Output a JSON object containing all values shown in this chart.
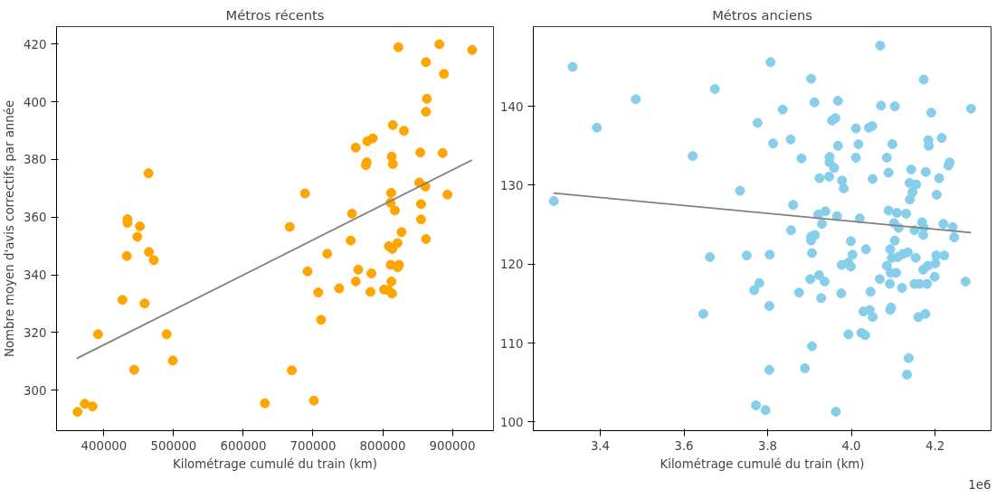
{
  "chart_data": [
    {
      "type": "scatter",
      "title": "Métros récents",
      "xlabel": "Kilométrage cumulé du train (km)",
      "ylabel": "Nombre moyen d'avis correctifs par année",
      "xlim": [
        332000,
        959000
      ],
      "ylim": [
        286,
        426
      ],
      "xticks": [
        400000,
        500000,
        600000,
        700000,
        800000,
        900000
      ],
      "yticks": [
        300,
        320,
        340,
        360,
        380,
        400,
        420
      ],
      "grid": false,
      "series": [
        {
          "marker": "circle",
          "color": "#ffa500",
          "x": [
            464000,
            433800,
            433800,
            451600,
            447900,
            432900,
            464600,
            471600,
            426600,
            458400,
            391600,
            490000,
            498800,
            443400,
            362100,
            372500,
            383700,
            630900,
            666600,
            754100,
            827100,
            862100,
            808800,
            813800,
            821300,
            720400,
            811600,
            823400,
            821600,
            692100,
            765000,
            783800,
            761300,
            812500,
            707500,
            737500,
            782500,
            802100,
            808400,
            813400,
            711600,
            669600,
            701300,
            822500,
            881300,
            928400,
            862100,
            887900,
            863400,
            862100,
            814600,
            830400,
            785900,
            777900,
            761300,
            812900,
            814600,
            777100,
            775900,
            854000,
            885900,
            688400,
            852500,
            861300,
            892900,
            812100,
            811300,
            817500,
            855000,
            755900,
            855000
          ],
          "values": [
            375.2,
            359.3,
            358.0,
            356.8,
            353.2,
            346.5,
            347.9,
            345.1,
            331.3,
            330.1,
            319.4,
            319.4,
            310.3,
            307.1,
            292.5,
            295.3,
            294.4,
            295.5,
            356.6,
            351.9,
            354.8,
            352.4,
            349.9,
            349.0,
            351.0,
            347.3,
            343.5,
            343.5,
            342.6,
            341.2,
            341.8,
            340.5,
            337.7,
            337.7,
            333.9,
            335.3,
            334.1,
            334.9,
            334.7,
            333.5,
            324.4,
            306.9,
            296.4,
            418.9,
            419.9,
            417.9,
            413.7,
            409.6,
            401.0,
            396.5,
            391.9,
            389.9,
            387.3,
            386.3,
            384.1,
            381.0,
            378.4,
            379.0,
            378.0,
            382.4,
            382.2,
            368.2,
            372.0,
            370.6,
            367.8,
            368.4,
            365.0,
            362.3,
            364.5,
            361.2,
            359.2
          ]
        },
        {
          "type": "line",
          "color": "#808080",
          "x": [
            360900,
            928400
          ],
          "values": [
            311.0,
            379.8
          ]
        }
      ]
    },
    {
      "type": "scatter",
      "title": "Métros anciens",
      "xlabel": "Kilométrage cumulé du train (km)",
      "annotations": [
        "1e6"
      ],
      "xlim": [
        3.24,
        4.334
      ],
      "ylim": [
        98.9,
        150.1
      ],
      "xticks": [
        {
          "value": 3.4,
          "label": "3.4"
        },
        {
          "value": 3.6,
          "label": "3.6"
        },
        {
          "value": 3.8,
          "label": "3.8"
        },
        {
          "value": 4.0,
          "label": "4.0"
        },
        {
          "value": 4.2,
          "label": "4.2"
        }
      ],
      "yticks": [
        100,
        110,
        120,
        130,
        140
      ],
      "grid": false,
      "series": [
        {
          "marker": "circle",
          "color": "#87ceeb",
          "x": [
            3.289,
            3.334,
            3.392,
            3.485,
            3.621,
            3.674,
            3.734,
            3.776,
            3.807,
            3.813,
            3.836,
            3.855,
            3.861,
            3.856,
            3.881,
            3.904,
            3.912,
            3.924,
            3.921,
            3.938,
            3.93,
            3.904,
            3.913,
            3.948,
            3.948,
            3.959,
            3.947,
            3.954,
            3.962,
            3.968,
            3.968,
            3.978,
            3.982,
            3.966,
            3.999,
            4.011,
            4.011,
            4.017,
            4.02,
            4.042,
            4.05,
            4.051,
            4.069,
            4.071,
            4.085,
            4.089,
            4.089,
            4.098,
            4.104,
            4.102,
            4.109,
            4.113,
            4.104,
            4.131,
            4.139,
            4.143,
            4.146,
            4.14,
            4.155,
            4.151,
            4.169,
            4.173,
            4.173,
            4.172,
            4.178,
            4.184,
            4.185,
            4.191,
            4.204,
            4.21,
            4.216,
            4.22,
            4.232,
            4.235,
            4.242,
            4.246,
            4.286,
            3.904,
            4.035,
            4.093,
            3.662,
            3.646,
            3.75,
            3.805,
            3.768,
            3.78,
            3.804,
            3.772,
            3.795,
            3.804,
            3.875,
            3.906,
            3.902,
            3.923,
            3.936,
            3.928,
            3.889,
            3.906,
            3.963,
            3.977,
            3.993,
            3.999,
            4.003,
            3.976,
            3.993,
            4.024,
            4.033,
            4.029,
            4.044,
            4.051,
            4.046,
            4.068,
            4.085,
            4.094,
            4.107,
            4.092,
            4.097,
            4.111,
            4.123,
            4.135,
            4.121,
            4.154,
            4.151,
            4.163,
            4.181,
            4.172,
            4.183,
            4.201,
            4.203,
            4.222,
            4.199,
            4.273,
            4.093,
            4.095,
            4.16,
            4.177,
            4.137,
            4.133
          ],
          "values": [
            128.0,
            145.0,
            137.3,
            140.9,
            133.7,
            142.2,
            129.3,
            137.9,
            145.6,
            135.3,
            139.6,
            135.8,
            127.5,
            124.3,
            133.4,
            143.5,
            140.5,
            130.9,
            126.3,
            126.7,
            125.1,
            123.5,
            123.7,
            133.6,
            132.9,
            132.2,
            131.1,
            138.2,
            138.5,
            140.7,
            135.0,
            130.6,
            129.6,
            126.1,
            122.9,
            137.2,
            133.5,
            135.2,
            125.8,
            137.3,
            137.5,
            130.8,
            147.7,
            140.1,
            133.5,
            131.6,
            126.8,
            135.2,
            140.0,
            125.2,
            126.5,
            124.6,
            123.0,
            126.4,
            130.3,
            132.0,
            129.1,
            128.2,
            130.1,
            124.3,
            125.3,
            143.4,
            124.6,
            123.7,
            131.7,
            135.7,
            135.0,
            139.2,
            128.8,
            130.9,
            136.0,
            125.1,
            132.5,
            132.9,
            124.7,
            123.4,
            139.7,
            123.0,
            121.9,
            121.9,
            120.9,
            113.7,
            121.1,
            121.2,
            116.7,
            117.6,
            114.7,
            102.1,
            101.5,
            106.6,
            116.4,
            121.4,
            118.1,
            118.6,
            117.8,
            115.7,
            106.8,
            109.6,
            101.3,
            119.9,
            120.2,
            119.7,
            121.2,
            116.3,
            111.1,
            111.3,
            111.0,
            114.0,
            114.2,
            113.3,
            116.5,
            118.1,
            119.8,
            118.9,
            118.9,
            117.5,
            120.8,
            120.9,
            121.3,
            121.5,
            117.0,
            120.8,
            117.5,
            117.5,
            117.5,
            119.3,
            119.8,
            120.1,
            121.1,
            121.1,
            118.4,
            117.8,
            114.2,
            114.5,
            113.3,
            113.7,
            108.1,
            106.0
          ]
        },
        {
          "type": "line",
          "color": "#808080",
          "x": [
            3.288,
            4.286
          ],
          "values": [
            129.0,
            124.0
          ]
        }
      ]
    }
  ]
}
